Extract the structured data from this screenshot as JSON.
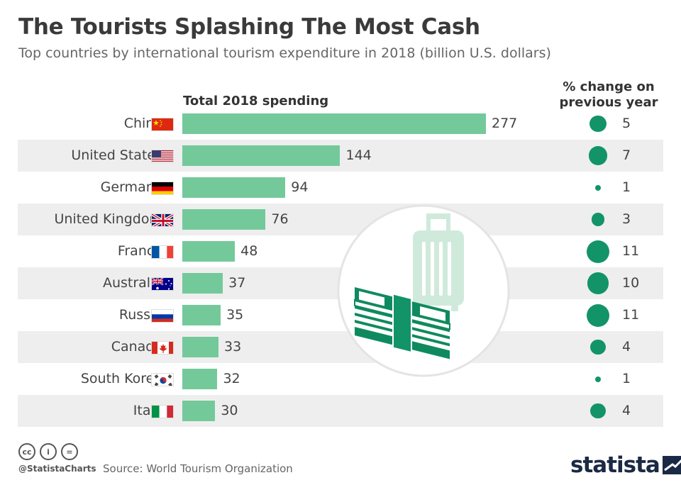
{
  "title": "The Tourists Splashing The Most Cash",
  "subtitle": "Top countries by international tourism expenditure in 2018 (billion U.S. dollars)",
  "columns": {
    "spending_header": "Total 2018 spending",
    "change_header_line1": "% change on",
    "change_header_line2": "previous year"
  },
  "colors": {
    "bar": "#74c99b",
    "dot": "#129468",
    "row_shade": "#eeeeee"
  },
  "chart_data": {
    "type": "bar",
    "orientation": "horizontal",
    "title": "The Tourists Splashing The Most Cash",
    "subtitle": "Top countries by international tourism expenditure in 2018 (billion U.S. dollars)",
    "categories": [
      "China",
      "United States",
      "Germany",
      "United Kingdom",
      "France",
      "Australia",
      "Russia",
      "Canada",
      "South Korea",
      "Italy"
    ],
    "flags": [
      "china-flag-icon",
      "usa-flag-icon",
      "germany-flag-icon",
      "uk-flag-icon",
      "france-flag-icon",
      "australia-flag-icon",
      "russia-flag-icon",
      "canada-flag-icon",
      "south-korea-flag-icon",
      "italy-flag-icon"
    ],
    "series": [
      {
        "name": "Total 2018 spending",
        "values": [
          277,
          144,
          94,
          76,
          48,
          37,
          35,
          33,
          32,
          30
        ]
      },
      {
        "name": "% change on previous year",
        "values": [
          5,
          7,
          1,
          3,
          11,
          10,
          11,
          4,
          1,
          4
        ]
      }
    ],
    "xlim": [
      0,
      277
    ],
    "grid": false
  },
  "illustration": "suitcase-and-cash-icon",
  "footer": {
    "handle": "@StatistaCharts",
    "source": "Source: World Tourism Organization",
    "license_icons": [
      "cc",
      "i",
      "="
    ],
    "brand": "statista"
  }
}
